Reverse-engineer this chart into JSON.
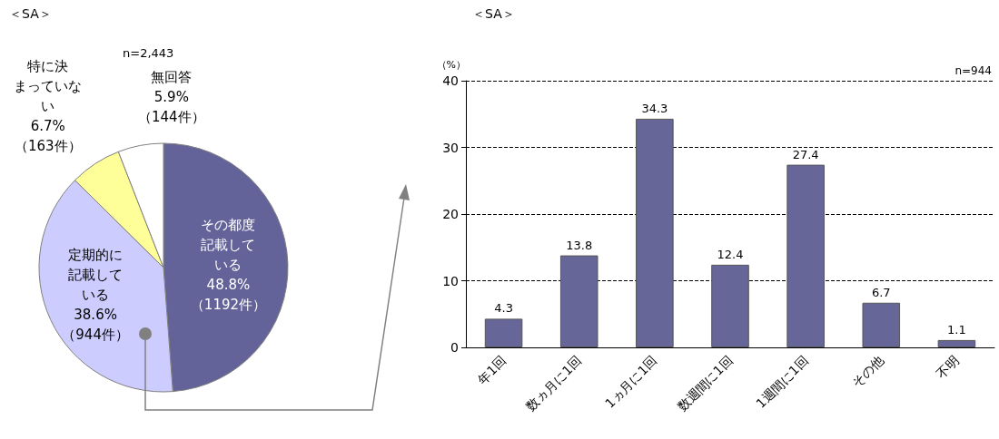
{
  "chart_data": [
    {
      "type": "pie",
      "title": "＜SA＞",
      "annotations": [
        "n=2,443"
      ],
      "categories": [
        "その都度記載している",
        "定期的に記載している",
        "特に決まっていない",
        "無回答"
      ],
      "values": [
        48.8,
        38.6,
        6.7,
        5.9
      ],
      "value_labels": [
        "48.8%\n（1192件）",
        "38.6%\n（944件）",
        "6.7%\n（163件）",
        "5.9%\n（144件）"
      ],
      "colors": [
        "#636399",
        "#ccccff",
        "#ffff99",
        "#ffffff"
      ],
      "legend": false
    },
    {
      "type": "bar",
      "title": "＜SA＞",
      "ylabel": "（%）",
      "annotations": [
        "n=944"
      ],
      "categories": [
        "年1回",
        "数ヵ月に1回",
        "1ヵ月に1回",
        "数週間に1回",
        "1週間に1回",
        "その他",
        "不明"
      ],
      "values": [
        4.3,
        13.8,
        34.3,
        12.4,
        27.4,
        6.7,
        1.1
      ],
      "color": "#666699",
      "ylim": [
        0,
        40
      ],
      "yticks": [
        0,
        10,
        20,
        30,
        40
      ],
      "grid": "y",
      "data_labels": true,
      "legend": false
    }
  ]
}
